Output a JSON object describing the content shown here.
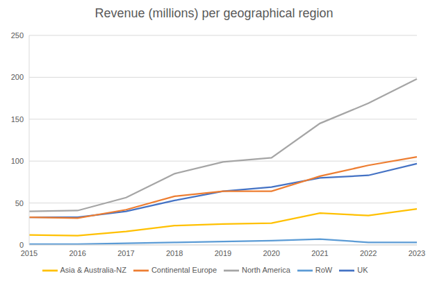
{
  "chart_data": {
    "type": "line",
    "title": "Revenue (millions) per geographical region",
    "categories": [
      "2015",
      "2016",
      "2017",
      "2018",
      "2019",
      "2020",
      "2021",
      "2022",
      "2023"
    ],
    "series": [
      {
        "name": "UK",
        "color": "#4472c4",
        "values": [
          33,
          33,
          40,
          53,
          64,
          69,
          80,
          83,
          97
        ]
      },
      {
        "name": "Continental Europe",
        "color": "#ed7d31",
        "values": [
          33,
          32,
          42,
          58,
          64,
          64,
          82,
          95,
          105
        ]
      },
      {
        "name": "North America",
        "color": "#a5a5a5",
        "values": [
          40,
          41,
          56.5,
          85,
          99,
          104,
          145,
          169,
          198
        ]
      },
      {
        "name": "Asia & Australia-NZ",
        "color": "#ffc000",
        "values": [
          12,
          11,
          16,
          23,
          25,
          26,
          38,
          35,
          43
        ]
      },
      {
        "name": "RoW",
        "color": "#5b9bd5",
        "values": [
          1,
          1,
          2,
          3,
          4,
          5,
          7,
          3,
          3
        ]
      }
    ],
    "ylim": [
      0,
      250
    ],
    "yticks": [
      0,
      50,
      100,
      150,
      200,
      250
    ],
    "grid": true,
    "legend": "bottom"
  }
}
